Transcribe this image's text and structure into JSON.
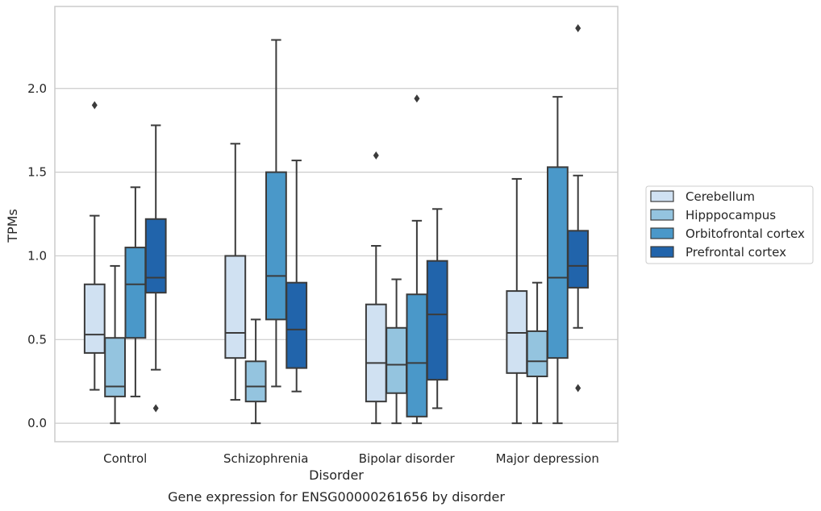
{
  "caption": "Gene expression for ENSG00000261656 by disorder",
  "colors": {
    "Cerebellum": "#d0e1f2",
    "Hipppocampus": "#94c4df",
    "Orbitofrontal cortex": "#4a98c9",
    "Prefrontal cortex": "#2164ab",
    "grid": "#cccccc",
    "frame": "#cccccc",
    "line": "#3b3b3b"
  },
  "chart_data": {
    "type": "box",
    "title": "",
    "xlabel": "Disorder",
    "ylabel": "TPMs",
    "ylim": [
      -0.11,
      2.49
    ],
    "yticks": [
      "0.0",
      "0.5",
      "1.0",
      "1.5",
      "2.0"
    ],
    "grid": "horizontal",
    "legend_position": "right",
    "categories": [
      "Control",
      "Schizophrenia",
      "Bipolar disorder",
      "Major depression"
    ],
    "series": [
      {
        "name": "Cerebellum",
        "boxes": [
          {
            "whisker_low": 0.2,
            "q1": 0.42,
            "median": 0.53,
            "q3": 0.83,
            "whisker_high": 1.24,
            "outliers": [
              1.9
            ]
          },
          {
            "whisker_low": 0.14,
            "q1": 0.39,
            "median": 0.54,
            "q3": 1.0,
            "whisker_high": 1.67,
            "outliers": []
          },
          {
            "whisker_low": 0.0,
            "q1": 0.13,
            "median": 0.36,
            "q3": 0.71,
            "whisker_high": 1.06,
            "outliers": [
              1.6
            ]
          },
          {
            "whisker_low": 0.0,
            "q1": 0.3,
            "median": 0.54,
            "q3": 0.79,
            "whisker_high": 1.46,
            "outliers": []
          }
        ]
      },
      {
        "name": "Hipppocampus",
        "boxes": [
          {
            "whisker_low": 0.0,
            "q1": 0.16,
            "median": 0.22,
            "q3": 0.51,
            "whisker_high": 0.94,
            "outliers": []
          },
          {
            "whisker_low": 0.0,
            "q1": 0.13,
            "median": 0.22,
            "q3": 0.37,
            "whisker_high": 0.62,
            "outliers": []
          },
          {
            "whisker_low": 0.0,
            "q1": 0.18,
            "median": 0.35,
            "q3": 0.57,
            "whisker_high": 0.86,
            "outliers": []
          },
          {
            "whisker_low": 0.0,
            "q1": 0.28,
            "median": 0.37,
            "q3": 0.55,
            "whisker_high": 0.84,
            "outliers": []
          }
        ]
      },
      {
        "name": "Orbitofrontal cortex",
        "boxes": [
          {
            "whisker_low": 0.16,
            "q1": 0.51,
            "median": 0.83,
            "q3": 1.05,
            "whisker_high": 1.41,
            "outliers": []
          },
          {
            "whisker_low": 0.22,
            "q1": 0.62,
            "median": 0.88,
            "q3": 1.5,
            "whisker_high": 2.29,
            "outliers": []
          },
          {
            "whisker_low": 0.0,
            "q1": 0.04,
            "median": 0.36,
            "q3": 0.77,
            "whisker_high": 1.21,
            "outliers": [
              1.94
            ]
          },
          {
            "whisker_low": 0.0,
            "q1": 0.39,
            "median": 0.87,
            "q3": 1.53,
            "whisker_high": 1.95,
            "outliers": []
          }
        ]
      },
      {
        "name": "Prefrontal cortex",
        "boxes": [
          {
            "whisker_low": 0.32,
            "q1": 0.78,
            "median": 0.87,
            "q3": 1.22,
            "whisker_high": 1.78,
            "outliers": [
              0.09
            ]
          },
          {
            "whisker_low": 0.19,
            "q1": 0.33,
            "median": 0.56,
            "q3": 0.84,
            "whisker_high": 1.57,
            "outliers": []
          },
          {
            "whisker_low": 0.09,
            "q1": 0.26,
            "median": 0.65,
            "q3": 0.97,
            "whisker_high": 1.28,
            "outliers": []
          },
          {
            "whisker_low": 0.57,
            "q1": 0.81,
            "median": 0.94,
            "q3": 1.15,
            "whisker_high": 1.48,
            "outliers": [
              0.21,
              2.36
            ]
          }
        ]
      }
    ]
  }
}
